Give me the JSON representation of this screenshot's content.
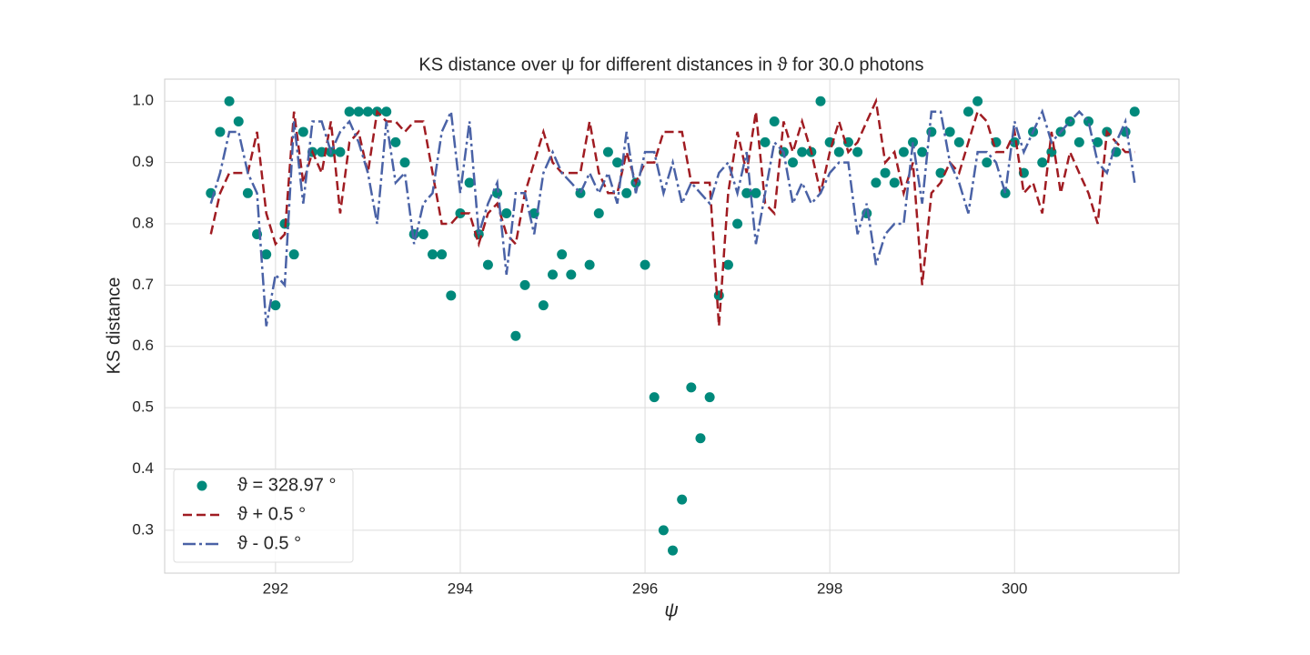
{
  "chart_data": {
    "type": "line",
    "title": "KS distance over ψ for different distances in ϑ for 30.0 photons",
    "xlabel": "ψ",
    "ylabel": "KS distance",
    "x": [
      291.3,
      291.4,
      291.5,
      291.6,
      291.7,
      291.8,
      291.9,
      292.0,
      292.1,
      292.2,
      292.3,
      292.4,
      292.5,
      292.6,
      292.7,
      292.8,
      292.9,
      293.0,
      293.1,
      293.2,
      293.3,
      293.4,
      293.5,
      293.6,
      293.7,
      293.8,
      293.9,
      294.0,
      294.1,
      294.2,
      294.3,
      294.4,
      294.5,
      294.6,
      294.7,
      294.8,
      294.9,
      295.0,
      295.1,
      295.2,
      295.3,
      295.4,
      295.5,
      295.6,
      295.7,
      295.8,
      295.9,
      296.0,
      296.1,
      296.2,
      296.3,
      296.4,
      296.5,
      296.6,
      296.7,
      296.8,
      296.9,
      297.0,
      297.1,
      297.2,
      297.3,
      297.4,
      297.5,
      297.6,
      297.7,
      297.8,
      297.9,
      298.0,
      298.1,
      298.2,
      298.3,
      298.4,
      298.5,
      298.6,
      298.7,
      298.8,
      298.9,
      299.0,
      299.1,
      299.2,
      299.3,
      299.4,
      299.5,
      299.6,
      299.7,
      299.8,
      299.9,
      300.0,
      300.1,
      300.2,
      300.3,
      300.4,
      300.5,
      300.6,
      300.7,
      300.8,
      300.9,
      301.0,
      301.1,
      301.2,
      301.3
    ],
    "series": [
      {
        "name": "ϑ = 328.97 °",
        "kind": "scatter",
        "color": "#00897b",
        "values": [
          0.85,
          0.95,
          1.0,
          0.967,
          0.85,
          0.783,
          0.75,
          0.667,
          0.8,
          0.75,
          0.95,
          0.917,
          0.917,
          0.917,
          0.917,
          0.983,
          0.983,
          0.983,
          0.983,
          0.983,
          0.933,
          0.9,
          0.783,
          0.783,
          0.75,
          0.75,
          0.683,
          0.817,
          0.867,
          0.783,
          0.733,
          0.85,
          0.817,
          0.617,
          0.7,
          0.817,
          0.667,
          0.717,
          0.75,
          0.717,
          0.85,
          0.733,
          0.817,
          0.917,
          0.9,
          0.85,
          0.867,
          0.733,
          0.517,
          0.3,
          0.267,
          0.35,
          0.533,
          0.45,
          0.517,
          0.683,
          0.733,
          0.8,
          0.85,
          0.85,
          0.933,
          0.967,
          0.917,
          0.9,
          0.917,
          0.917,
          1.0,
          0.933,
          0.917,
          0.933,
          0.917,
          0.817,
          0.867,
          0.883,
          0.867,
          0.917,
          0.933,
          0.917,
          0.95,
          0.883,
          0.95,
          0.933,
          0.983,
          1.0,
          0.9,
          0.933,
          0.85,
          0.933,
          0.883,
          0.95,
          0.9,
          0.917,
          0.95,
          0.967,
          0.933,
          0.967,
          0.933,
          0.95,
          0.917,
          0.95,
          0.983
        ]
      },
      {
        "name": "ϑ + 0.5 °",
        "kind": "line",
        "linestyle": "--",
        "color": "#a01c22",
        "values": [
          0.783,
          0.85,
          0.883,
          0.883,
          0.883,
          0.95,
          0.817,
          0.767,
          0.783,
          0.983,
          0.867,
          0.917,
          0.883,
          0.967,
          0.817,
          0.933,
          0.95,
          0.883,
          0.983,
          0.967,
          0.967,
          0.95,
          0.967,
          0.967,
          0.883,
          0.8,
          0.8,
          0.817,
          0.817,
          0.767,
          0.817,
          0.833,
          0.783,
          0.767,
          0.85,
          0.9,
          0.95,
          0.9,
          0.883,
          0.883,
          0.883,
          0.967,
          0.883,
          0.85,
          0.85,
          0.917,
          0.867,
          0.9,
          0.9,
          0.95,
          0.95,
          0.95,
          0.867,
          0.867,
          0.867,
          0.633,
          0.85,
          0.95,
          0.883,
          0.983,
          0.833,
          0.817,
          0.967,
          0.917,
          0.967,
          0.917,
          0.85,
          0.917,
          0.967,
          0.917,
          0.933,
          0.967,
          1.0,
          0.9,
          0.917,
          0.85,
          0.9,
          0.7,
          0.85,
          0.867,
          0.9,
          0.883,
          0.933,
          0.983,
          0.967,
          0.917,
          0.917,
          0.95,
          0.85,
          0.867,
          0.817,
          0.95,
          0.85,
          0.917,
          0.883,
          0.85,
          0.8,
          0.95,
          0.933,
          0.917,
          0.917
        ]
      },
      {
        "name": "ϑ - 0.5 °",
        "kind": "line",
        "linestyle": "-.",
        "color": "#4a62a6",
        "values": [
          0.833,
          0.883,
          0.95,
          0.95,
          0.883,
          0.85,
          0.633,
          0.717,
          0.7,
          0.967,
          0.833,
          0.967,
          0.967,
          0.917,
          0.95,
          0.967,
          0.933,
          0.883,
          0.8,
          0.967,
          0.867,
          0.883,
          0.767,
          0.833,
          0.85,
          0.95,
          0.983,
          0.85,
          0.967,
          0.783,
          0.833,
          0.867,
          0.717,
          0.85,
          0.85,
          0.783,
          0.883,
          0.917,
          0.883,
          0.867,
          0.85,
          0.883,
          0.85,
          0.883,
          0.833,
          0.95,
          0.85,
          0.917,
          0.917,
          0.85,
          0.9,
          0.833,
          0.867,
          0.85,
          0.833,
          0.883,
          0.9,
          0.85,
          0.917,
          0.767,
          0.85,
          0.933,
          0.917,
          0.833,
          0.867,
          0.833,
          0.85,
          0.883,
          0.9,
          0.9,
          0.783,
          0.833,
          0.733,
          0.783,
          0.8,
          0.8,
          0.933,
          0.833,
          0.983,
          0.983,
          0.9,
          0.867,
          0.817,
          0.917,
          0.917,
          0.9,
          0.85,
          0.967,
          0.917,
          0.95,
          0.983,
          0.933,
          0.95,
          0.967,
          0.983,
          0.967,
          0.9,
          0.883,
          0.933,
          0.967,
          0.867
        ]
      }
    ],
    "xlim": [
      290.8,
      301.78
    ],
    "ylim": [
      0.23,
      1.036
    ],
    "xticks": [
      292,
      294,
      296,
      298,
      300
    ],
    "yticks": [
      0.3,
      0.4,
      0.5,
      0.6,
      0.7,
      0.8,
      0.9,
      {
        "value": 1,
        "label": "1.0"
      }
    ],
    "grid": true,
    "legend": "lower left"
  }
}
